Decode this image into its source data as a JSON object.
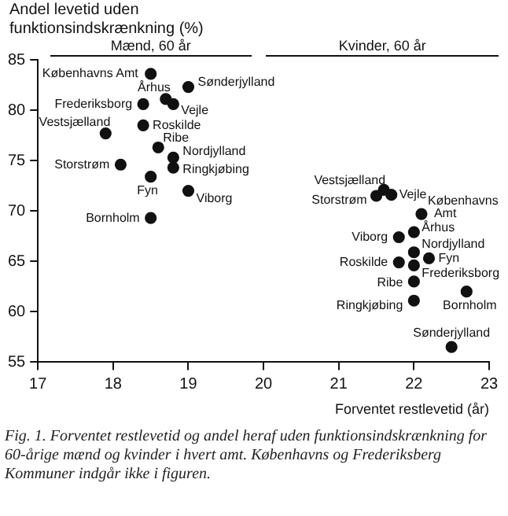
{
  "chart_data": {
    "type": "scatter",
    "ylabel": "Andel levetid uden funktionsindskrænkning (%)",
    "xlabel": "Forventet restlevetid (år)",
    "xlim": [
      17,
      23
    ],
    "xticks": [
      17,
      18,
      19,
      20,
      21,
      22,
      23
    ],
    "ylim": [
      55,
      85
    ],
    "yticks": [
      55,
      60,
      65,
      70,
      75,
      80,
      85
    ],
    "grid": false,
    "legend": false,
    "marker": "circle",
    "series": [
      {
        "color": "#111111",
        "x": [
          18.5,
          19.0,
          18.7,
          18.8,
          18.4,
          18.4,
          17.9,
          18.6,
          18.8,
          18.1,
          18.8,
          18.5,
          19.0,
          18.5
        ],
        "values": [
          83.6,
          82.3,
          81.1,
          80.6,
          80.6,
          78.5,
          77.7,
          76.3,
          75.3,
          74.6,
          74.3,
          73.4,
          72.0,
          69.3
        ]
      },
      {
        "color": "#111111",
        "x": [
          21.6,
          21.7,
          21.5,
          22.1,
          22.0,
          21.8,
          22.0,
          22.2,
          21.8,
          22.0,
          22.0,
          22.7,
          22.0,
          22.5
        ],
        "values": [
          72.1,
          71.6,
          71.5,
          69.7,
          67.9,
          67.4,
          65.9,
          65.3,
          64.9,
          64.6,
          63.0,
          62.0,
          61.1,
          56.5
        ]
      }
    ],
    "annotations": [
      "Mænd, 60 år",
      "Kvinder, 60 år",
      {
        "text": "Københavns Amt",
        "x": 18.5,
        "y": 83.6
      },
      {
        "text": "Sønderjylland",
        "x": 19.0,
        "y": 82.3
      },
      {
        "text": "Århus",
        "x": 18.7,
        "y": 81.1
      },
      {
        "text": "Vejle",
        "x": 18.8,
        "y": 80.6
      },
      {
        "text": "Frederiksborg",
        "x": 18.4,
        "y": 80.6
      },
      {
        "text": "Roskilde",
        "x": 18.4,
        "y": 78.5
      },
      {
        "text": "Vestsjælland",
        "x": 17.9,
        "y": 77.7
      },
      {
        "text": "Ribe",
        "x": 18.6,
        "y": 76.3
      },
      {
        "text": "Nordjylland",
        "x": 18.8,
        "y": 75.3
      },
      {
        "text": "Storstrøm",
        "x": 18.1,
        "y": 74.6
      },
      {
        "text": "Ringkjøbing",
        "x": 18.8,
        "y": 74.3
      },
      {
        "text": "Fyn",
        "x": 18.5,
        "y": 73.4
      },
      {
        "text": "Viborg",
        "x": 19.0,
        "y": 72.0
      },
      {
        "text": "Bornholm",
        "x": 18.5,
        "y": 69.3
      },
      {
        "text": "Vestsjælland",
        "x": 21.6,
        "y": 72.1
      },
      {
        "text": "Vejle",
        "x": 21.7,
        "y": 71.6
      },
      {
        "text": "Storstrøm",
        "x": 21.5,
        "y": 71.5
      },
      {
        "text": "Københavns Amt",
        "x": 22.1,
        "y": 69.7
      },
      {
        "text": "Århus",
        "x": 22.0,
        "y": 67.9
      },
      {
        "text": "Viborg",
        "x": 21.8,
        "y": 67.4
      },
      {
        "text": "Nordjylland",
        "x": 22.0,
        "y": 65.9
      },
      {
        "text": "Fyn",
        "x": 22.2,
        "y": 65.3
      },
      {
        "text": "Roskilde",
        "x": 21.8,
        "y": 64.9
      },
      {
        "text": "Frederiksborg",
        "x": 22.0,
        "y": 64.6
      },
      {
        "text": "Ribe",
        "x": 22.0,
        "y": 63.0
      },
      {
        "text": "Bornholm",
        "x": 22.7,
        "y": 62.0
      },
      {
        "text": "Ringkjøbing",
        "x": 22.0,
        "y": 61.1
      },
      {
        "text": "Sønderjylland",
        "x": 22.5,
        "y": 56.5
      },
      "Fig. 1. Forventet restlevetid og andel heraf uden funktionsindskrænkning for 60-årige mænd og kvinder i hvert amt. Københavns og Frederiksberg Kommuner indgår ikke i figuren."
    ]
  }
}
